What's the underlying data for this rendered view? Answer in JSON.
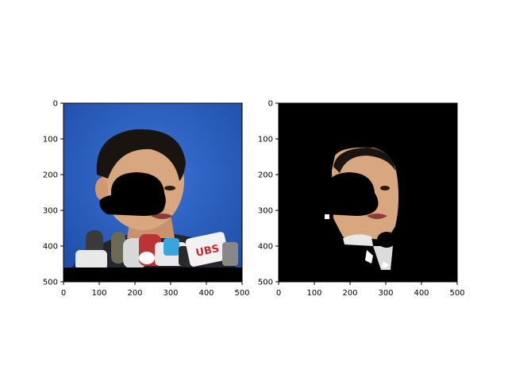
{
  "chart_data": [
    {
      "type": "image",
      "title": "",
      "xlabel": "",
      "ylabel": "",
      "xlim": [
        0,
        500
      ],
      "ylim": [
        500,
        0
      ],
      "xticks": [
        "0",
        "100",
        "200",
        "300",
        "400",
        "500"
      ],
      "yticks": [
        "0",
        "100",
        "200",
        "300",
        "400",
        "500"
      ],
      "grid": false,
      "content": "photo of a man speaking at a press conference with microphones, face partly covered by a black hat-shaped mask"
    },
    {
      "type": "image",
      "title": "",
      "xlabel": "",
      "ylabel": "",
      "xlim": [
        0,
        500
      ],
      "ylim": [
        500,
        0
      ],
      "xticks": [
        "0",
        "100",
        "200",
        "300",
        "400",
        "500"
      ],
      "yticks": [
        "0",
        "100",
        "200",
        "300",
        "400",
        "500"
      ],
      "grid": false,
      "content": "segmented face region on black background with black hat-shaped mask"
    }
  ],
  "colors": {
    "background_blue": "#2a5fbf",
    "mask_black": "#000000",
    "skin": "#d9a77f",
    "hair": "#1a1410"
  },
  "microphone_label": "UBS"
}
